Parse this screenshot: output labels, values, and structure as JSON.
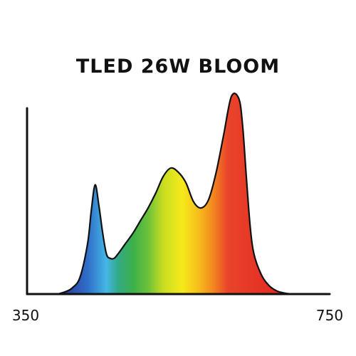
{
  "chart_data": {
    "type": "area",
    "title": "TLED 26W BLOOM",
    "xlabel": "",
    "ylabel": "",
    "xlim": [
      350,
      750
    ],
    "ylim": [
      0,
      1
    ],
    "x_ticks": [
      350,
      750
    ],
    "grid": false,
    "legend": "none",
    "x": [
      390,
      400,
      410,
      420,
      430,
      435,
      440,
      445,
      450,
      455,
      460,
      465,
      470,
      480,
      490,
      500,
      510,
      520,
      530,
      540,
      550,
      560,
      570,
      580,
      590,
      600,
      610,
      620,
      630,
      635,
      640,
      645,
      650,
      660,
      670,
      680,
      690,
      700
    ],
    "y": [
      0.0,
      0.01,
      0.03,
      0.08,
      0.24,
      0.4,
      0.52,
      0.42,
      0.29,
      0.19,
      0.17,
      0.17,
      0.19,
      0.24,
      0.29,
      0.35,
      0.41,
      0.48,
      0.56,
      0.6,
      0.58,
      0.53,
      0.44,
      0.41,
      0.45,
      0.58,
      0.76,
      0.94,
      0.93,
      0.8,
      0.55,
      0.32,
      0.19,
      0.09,
      0.04,
      0.015,
      0.005,
      0.0
    ],
    "color_stops": [
      {
        "wavelength": 400,
        "color": "#2d3d9e"
      },
      {
        "wavelength": 430,
        "color": "#2f6fc8"
      },
      {
        "wavelength": 455,
        "color": "#45b6e6"
      },
      {
        "wavelength": 470,
        "color": "#33a98a"
      },
      {
        "wavelength": 490,
        "color": "#3bb04a"
      },
      {
        "wavelength": 510,
        "color": "#6cc23a"
      },
      {
        "wavelength": 530,
        "color": "#c8dd22"
      },
      {
        "wavelength": 555,
        "color": "#f5ea1a"
      },
      {
        "wavelength": 575,
        "color": "#f7c11c"
      },
      {
        "wavelength": 595,
        "color": "#f38b1f"
      },
      {
        "wavelength": 615,
        "color": "#e9452a"
      },
      {
        "wavelength": 660,
        "color": "#e53225"
      },
      {
        "wavelength": 700,
        "color": "#d92a22"
      }
    ],
    "outline_color": "#111111",
    "axis_color": "#111111"
  }
}
